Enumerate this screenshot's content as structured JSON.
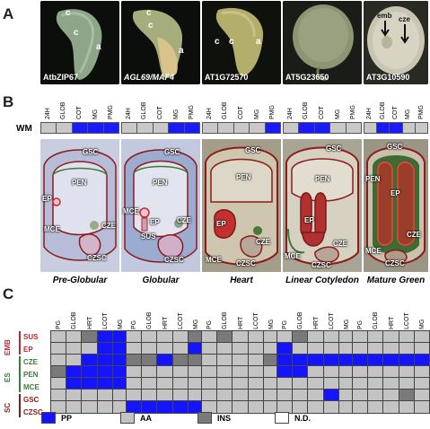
{
  "panel_letters": {
    "a": "A",
    "b": "B",
    "c": "C"
  },
  "panel_a": {
    "photos": [
      {
        "caption": "AtbZIP67",
        "italic": false,
        "labels": [
          "c",
          "c",
          "a"
        ]
      },
      {
        "caption": "AGL69/MAF4",
        "italic": true,
        "labels": [
          "c",
          "c",
          "a"
        ]
      },
      {
        "caption": "AT1G72570",
        "italic": false,
        "labels": [
          "c",
          "c",
          "a"
        ]
      },
      {
        "caption": "AT5G23650",
        "italic": false,
        "labels": []
      },
      {
        "caption": "AT3G10590",
        "italic": false,
        "labels": [
          "emb",
          "cze"
        ]
      }
    ]
  },
  "panel_b": {
    "row_label": "WM",
    "columns": [
      "24H",
      "GLOB",
      "COT",
      "MG",
      "PMG"
    ],
    "strips": [
      {
        "cells": [
          "AA",
          "AA",
          "PP",
          "PP",
          "PP"
        ]
      },
      {
        "cells": [
          "AA",
          "AA",
          "AA",
          "PP",
          "PP"
        ]
      },
      {
        "cells": [
          "AA",
          "AA",
          "AA",
          "AA",
          "PP"
        ]
      },
      {
        "cells": [
          "AA",
          "PP",
          "PP",
          "AA",
          "AA"
        ]
      },
      {
        "cells": [
          "AA",
          "PP",
          "PP",
          "AA",
          "AA"
        ]
      }
    ],
    "stages": [
      "Pre-Globular",
      "Globular",
      "Heart",
      "Linear Cotyledon",
      "Mature Green"
    ],
    "section_labels": [
      [
        "GSC",
        "PEN",
        "EP",
        "CZE",
        "MCE",
        "CZSC"
      ],
      [
        "GSC",
        "PEN",
        "MCE",
        "EP",
        "CZE",
        "SUS",
        "CZSC"
      ],
      [
        "GSC",
        "PEN",
        "EP",
        "CZE",
        "MCE",
        "CZSC"
      ],
      [
        "GSC",
        "PEN",
        "EP",
        "CZE",
        "MCE",
        "CZSC"
      ],
      [
        "GSC",
        "PEN",
        "EP",
        "CZE",
        "MCE",
        "CZSC"
      ]
    ]
  },
  "panel_c": {
    "columns": [
      "PG",
      "GLOB",
      "HRT",
      "LCOT",
      "MG"
    ],
    "groups": [
      {
        "name": "EMB",
        "color": "#c0282d",
        "rows": [
          "SUS",
          "EP"
        ]
      },
      {
        "name": "ES",
        "color": "#3a7d3a",
        "rows": [
          "CZE",
          "PEN",
          "MCE"
        ]
      },
      {
        "name": "SC",
        "color": "#8b1a1a",
        "rows": [
          "GSC",
          "CZSC"
        ]
      }
    ],
    "row_labels": [
      "SUS",
      "EP",
      "CZE",
      "PEN",
      "MCE",
      "GSC",
      "CZSC"
    ],
    "grids": [
      [
        [
          "AA",
          "AA",
          "INS",
          "PP",
          "PP"
        ],
        [
          "AA",
          "AA",
          "AA",
          "PP",
          "PP"
        ],
        [
          "AA",
          "AA",
          "PP",
          "PP",
          "PP"
        ],
        [
          "INS",
          "PP",
          "PP",
          "PP",
          "PP"
        ],
        [
          "AA",
          "PP",
          "PP",
          "PP",
          "PP"
        ],
        [
          "AA",
          "AA",
          "AA",
          "AA",
          "AA"
        ],
        [
          "AA",
          "AA",
          "AA",
          "AA",
          "AA"
        ]
      ],
      [
        [
          "AA",
          "AA",
          "AA",
          "AA",
          "INS"
        ],
        [
          "AA",
          "AA",
          "AA",
          "AA",
          "PP"
        ],
        [
          "INS",
          "INS",
          "PP",
          "INS",
          "INS"
        ],
        [
          "AA",
          "AA",
          "AA",
          "AA",
          "AA"
        ],
        [
          "AA",
          "AA",
          "AA",
          "AA",
          "AA"
        ],
        [
          "AA",
          "AA",
          "AA",
          "AA",
          "AA"
        ],
        [
          "PP",
          "PP",
          "PP",
          "PP",
          "PP"
        ]
      ],
      [
        [
          "AA",
          "INS",
          "AA",
          "AA",
          "AA"
        ],
        [
          "AA",
          "AA",
          "AA",
          "AA",
          "AA"
        ],
        [
          "AA",
          "AA",
          "AA",
          "AA",
          "INS"
        ],
        [
          "AA",
          "AA",
          "AA",
          "AA",
          "AA"
        ],
        [
          "AA",
          "AA",
          "AA",
          "AA",
          "AA"
        ],
        [
          "AA",
          "AA",
          "AA",
          "AA",
          "AA"
        ],
        [
          "AA",
          "AA",
          "AA",
          "AA",
          "AA"
        ]
      ],
      [
        [
          "AA",
          "INS",
          "AA",
          "AA",
          "AA"
        ],
        [
          "PP",
          "AA",
          "AA",
          "AA",
          "AA"
        ],
        [
          "PP",
          "PP",
          "PP",
          "PP",
          "PP"
        ],
        [
          "PP",
          "PP",
          "AA",
          "AA",
          "AA"
        ],
        [
          "AA",
          "AA",
          "AA",
          "AA",
          "AA"
        ],
        [
          "AA",
          "AA",
          "AA",
          "PP",
          "AA"
        ],
        [
          "AA",
          "AA",
          "AA",
          "AA",
          "AA"
        ]
      ],
      [
        [
          "AA",
          "AA",
          "AA",
          "AA",
          "AA"
        ],
        [
          "AA",
          "AA",
          "AA",
          "AA",
          "AA"
        ],
        [
          "PP",
          "PP",
          "PP",
          "PP",
          "PP"
        ],
        [
          "AA",
          "AA",
          "AA",
          "AA",
          "AA"
        ],
        [
          "AA",
          "AA",
          "AA",
          "AA",
          "AA"
        ],
        [
          "AA",
          "AA",
          "AA",
          "INS",
          "AA"
        ],
        [
          "AA",
          "AA",
          "AA",
          "AA",
          "AA"
        ]
      ]
    ],
    "legend": [
      {
        "key": "PP",
        "label": "PP",
        "color": "#1414ff"
      },
      {
        "key": "AA",
        "label": "AA",
        "color": "#c4c4c4"
      },
      {
        "key": "INS",
        "label": "INS",
        "color": "#7a7a7a"
      },
      {
        "key": "ND",
        "label": "N.D.",
        "color": "#ffffff"
      }
    ]
  }
}
